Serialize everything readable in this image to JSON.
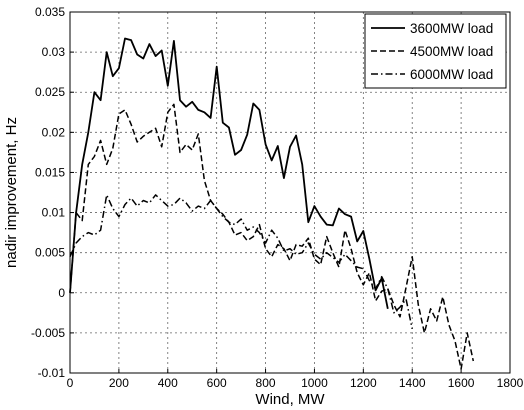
{
  "chart_data": {
    "type": "line",
    "xlabel": "Wind, MW",
    "ylabel": "nadir improvement, Hz",
    "xlim": [
      0,
      1800
    ],
    "ylim": [
      -0.01,
      0.035
    ],
    "xticks": [
      "0",
      "200",
      "400",
      "600",
      "800",
      "1000",
      "1200",
      "1400",
      "1600",
      "1800"
    ],
    "xtick_values": [
      0,
      200,
      400,
      600,
      800,
      1000,
      1200,
      1400,
      1600,
      1800
    ],
    "yticks": [
      "-0.01",
      "-0.005",
      "0",
      "0.005",
      "0.01",
      "0.015",
      "0.02",
      "0.025",
      "0.03",
      "0.035"
    ],
    "ytick_values": [
      -0.01,
      -0.005,
      0,
      0.005,
      0.01,
      0.015,
      0.02,
      0.025,
      0.03,
      0.035
    ],
    "grid": true,
    "legend_position": "top-right",
    "series": [
      {
        "name": "3600MW load",
        "style": "solid",
        "x": [
          0,
          25,
          50,
          75,
          100,
          125,
          150,
          175,
          200,
          225,
          250,
          275,
          300,
          325,
          350,
          375,
          400,
          425,
          450,
          475,
          500,
          525,
          550,
          575,
          600,
          625,
          650,
          675,
          700,
          725,
          750,
          775,
          800,
          825,
          850,
          875,
          900,
          925,
          950,
          975,
          1000,
          1025,
          1050,
          1075,
          1100,
          1125,
          1150,
          1175,
          1200,
          1225,
          1250,
          1275,
          1300
        ],
        "y": [
          0.0,
          0.01,
          0.016,
          0.02,
          0.025,
          0.024,
          0.03,
          0.027,
          0.028,
          0.0317,
          0.0315,
          0.0297,
          0.0292,
          0.031,
          0.0295,
          0.0302,
          0.0258,
          0.0314,
          0.024,
          0.0232,
          0.0238,
          0.0228,
          0.0225,
          0.0218,
          0.0282,
          0.0212,
          0.0206,
          0.0172,
          0.0178,
          0.0197,
          0.0236,
          0.0228,
          0.0185,
          0.0165,
          0.0183,
          0.0143,
          0.0182,
          0.0196,
          0.016,
          0.0088,
          0.0108,
          0.0095,
          0.0085,
          0.0084,
          0.0105,
          0.0098,
          0.0095,
          0.0064,
          0.0077,
          0.0042,
          0.0003,
          0.0018,
          -0.002
        ]
      },
      {
        "name": "4500MW load",
        "style": "dashed",
        "x": [
          0,
          25,
          50,
          75,
          100,
          125,
          150,
          175,
          200,
          225,
          250,
          275,
          300,
          325,
          350,
          375,
          400,
          425,
          450,
          475,
          500,
          525,
          550,
          575,
          600,
          625,
          650,
          675,
          700,
          725,
          750,
          775,
          800,
          825,
          850,
          875,
          900,
          925,
          950,
          975,
          1000,
          1025,
          1050,
          1075,
          1100,
          1125,
          1150,
          1175,
          1200,
          1225,
          1250,
          1275,
          1300,
          1325,
          1350,
          1375,
          1400,
          1425,
          1450,
          1475,
          1500,
          1525,
          1550,
          1575,
          1600,
          1625,
          1650
        ],
        "y": [
          0.0,
          0.01,
          0.009,
          0.016,
          0.017,
          0.019,
          0.016,
          0.018,
          0.0223,
          0.0228,
          0.021,
          0.0188,
          0.0195,
          0.02,
          0.0205,
          0.0182,
          0.0225,
          0.0235,
          0.0175,
          0.0185,
          0.0178,
          0.0198,
          0.014,
          0.0115,
          0.0105,
          0.0098,
          0.0088,
          0.0072,
          0.0075,
          0.0065,
          0.007,
          0.0085,
          0.0055,
          0.0045,
          0.006,
          0.0055,
          0.004,
          0.006,
          0.0058,
          0.0068,
          0.0042,
          0.0035,
          0.007,
          0.005,
          0.0032,
          0.0078,
          0.0055,
          0.0025,
          0.001,
          0.0025,
          -0.001,
          0.0002,
          0.0005,
          -0.0015,
          -0.003,
          0.0007,
          0.0045,
          -0.0015,
          -0.005,
          -0.002,
          -0.0035,
          -0.0005,
          -0.004,
          -0.006,
          -0.0095,
          -0.005,
          -0.0085
        ]
      },
      {
        "name": "6000MW load",
        "style": "dashdot",
        "x": [
          0,
          25,
          50,
          75,
          100,
          125,
          150,
          175,
          200,
          225,
          250,
          275,
          300,
          325,
          350,
          375,
          400,
          425,
          450,
          475,
          500,
          525,
          550,
          575,
          600,
          625,
          650,
          675,
          700,
          725,
          750,
          775,
          800,
          825,
          850,
          875,
          900,
          925,
          950,
          975,
          1000,
          1025,
          1050,
          1075,
          1100,
          1125,
          1150,
          1175,
          1200,
          1225,
          1250,
          1275,
          1300,
          1325,
          1350,
          1375,
          1400
        ],
        "y": [
          0.0045,
          0.0062,
          0.007,
          0.0075,
          0.0072,
          0.0078,
          0.0122,
          0.0105,
          0.0095,
          0.011,
          0.0118,
          0.0108,
          0.0115,
          0.0112,
          0.0122,
          0.0115,
          0.0108,
          0.011,
          0.0118,
          0.0112,
          0.0102,
          0.0108,
          0.0105,
          0.0115,
          0.0105,
          0.0095,
          0.0088,
          0.0085,
          0.0092,
          0.0078,
          0.0082,
          0.0075,
          0.0062,
          0.0078,
          0.0068,
          0.0052,
          0.0055,
          0.0048,
          0.005,
          0.0062,
          0.0048,
          0.0042,
          0.005,
          0.0044,
          0.0038,
          0.0048,
          0.004,
          0.0032,
          0.003,
          0.0015,
          0.0005,
          0.002,
          0.0005,
          -0.0025,
          -0.0018,
          -0.0008,
          -0.0045
        ]
      }
    ]
  }
}
